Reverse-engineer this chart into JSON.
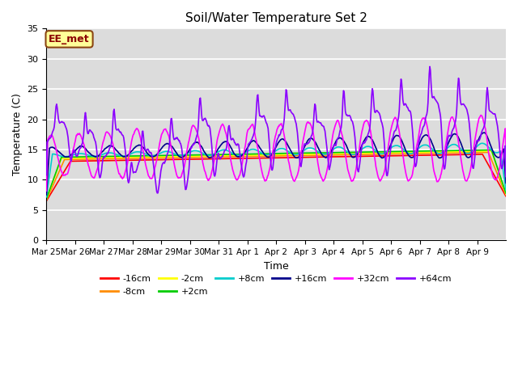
{
  "title": "Soil/Water Temperature Set 2",
  "xlabel": "Time",
  "ylabel": "Temperature (C)",
  "ylim": [
    0,
    35
  ],
  "yticks": [
    0,
    5,
    10,
    15,
    20,
    25,
    30,
    35
  ],
  "x_tick_labels": [
    "Mar 25",
    "Mar 26",
    "Mar 27",
    "Mar 28",
    "Mar 29",
    "Mar 30",
    "Mar 31",
    "Apr 1",
    "Apr 2",
    "Apr 3",
    "Apr 4",
    "Apr 5",
    "Apr 6",
    "Apr 7",
    "Apr 8",
    "Apr 9"
  ],
  "annotation_text": "EE_met",
  "annotation_box_color": "#FFFF99",
  "annotation_box_edge": "#8B4513",
  "background_color": "#DCDCDC",
  "series_colors": {
    "-16cm": "#FF0000",
    "-8cm": "#FF8C00",
    "-2cm": "#FFFF00",
    "+2cm": "#00CC00",
    "+8cm": "#00CCCC",
    "+16cm": "#00008B",
    "+32cm": "#FF00FF",
    "+64cm": "#8B00FF"
  },
  "legend_order": [
    "-16cm",
    "-8cm",
    "-2cm",
    "+2cm",
    "+8cm",
    "+16cm",
    "+32cm",
    "+64cm"
  ]
}
